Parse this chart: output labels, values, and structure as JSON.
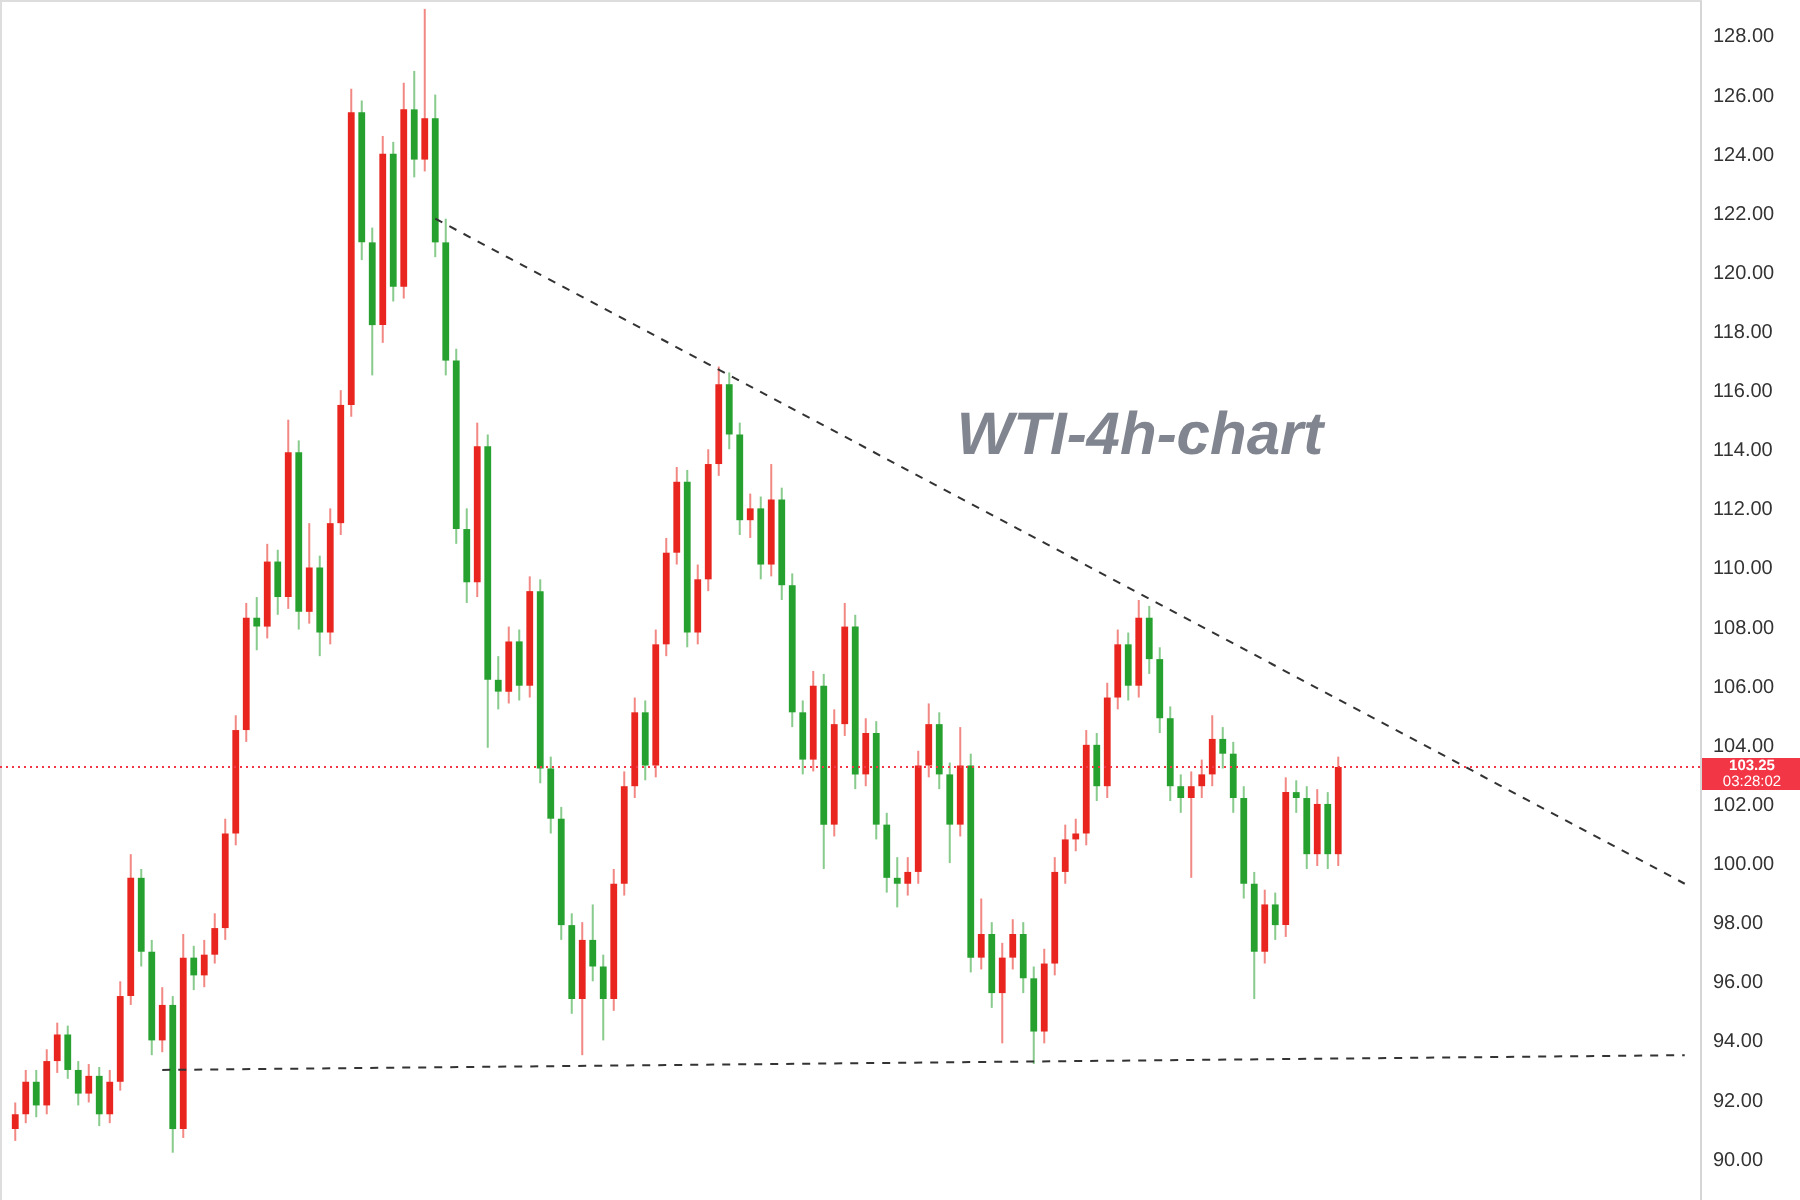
{
  "chart_data": {
    "type": "candlestick",
    "title": "WTI-4h-chart",
    "categories": [
      null,
      null,
      null,
      null,
      null,
      null,
      null,
      null,
      null,
      null,
      null,
      null,
      null,
      null,
      null,
      null,
      null,
      null,
      null,
      null,
      null,
      null,
      null,
      null,
      null,
      null,
      null,
      null,
      null,
      null,
      null,
      null,
      null,
      null,
      null,
      null,
      null,
      null,
      null,
      null,
      null,
      null,
      null,
      null,
      null,
      null,
      null,
      null,
      null,
      null,
      null,
      null,
      null,
      null,
      null,
      null,
      null,
      null,
      null,
      null,
      null,
      null,
      null,
      null,
      null,
      null,
      null,
      null,
      null,
      null,
      null,
      null,
      null,
      null,
      null,
      null,
      null,
      null,
      null,
      null,
      null,
      null,
      null,
      null,
      null,
      null,
      null,
      null,
      null,
      null,
      null,
      null,
      null,
      null,
      null,
      null,
      null,
      null,
      null,
      null,
      null,
      null,
      null,
      null,
      null,
      null,
      null,
      null,
      null,
      null,
      null,
      null,
      null,
      null,
      null,
      null,
      null,
      null,
      null,
      null,
      null,
      null,
      null,
      null,
      null,
      null,
      null,
      null,
      null,
      null,
      null,
      null,
      null,
      null,
      null,
      null,
      null,
      null,
      null,
      null,
      null,
      null,
      null,
      null,
      null,
      null,
      null,
      null,
      null,
      null,
      null,
      null,
      null,
      null,
      null,
      null,
      null,
      null,
      null,
      null
    ],
    "ohlc": [
      [
        91.0,
        91.9,
        90.6,
        91.5
      ],
      [
        91.5,
        93.0,
        91.2,
        92.6
      ],
      [
        92.6,
        93.0,
        91.4,
        91.8
      ],
      [
        91.8,
        93.7,
        91.5,
        93.3
      ],
      [
        93.3,
        94.6,
        92.9,
        94.2
      ],
      [
        94.2,
        94.5,
        92.7,
        93.0
      ],
      [
        93.0,
        93.3,
        91.8,
        92.2
      ],
      [
        92.2,
        93.2,
        91.9,
        92.8
      ],
      [
        92.8,
        93.1,
        91.1,
        91.5
      ],
      [
        91.5,
        93.0,
        91.2,
        92.6
      ],
      [
        92.6,
        96.0,
        92.3,
        95.5
      ],
      [
        95.5,
        100.3,
        95.2,
        99.5
      ],
      [
        99.5,
        99.8,
        96.5,
        97.0
      ],
      [
        97.0,
        97.4,
        93.5,
        94.0
      ],
      [
        94.0,
        95.8,
        93.6,
        95.2
      ],
      [
        95.2,
        95.5,
        90.2,
        91.0
      ],
      [
        91.0,
        97.6,
        90.7,
        96.8
      ],
      [
        96.8,
        97.2,
        95.7,
        96.2
      ],
      [
        96.2,
        97.4,
        95.8,
        96.9
      ],
      [
        96.9,
        98.3,
        96.6,
        97.8
      ],
      [
        97.8,
        101.5,
        97.4,
        101.0
      ],
      [
        101.0,
        105.0,
        100.6,
        104.5
      ],
      [
        104.5,
        108.8,
        104.1,
        108.3
      ],
      [
        108.3,
        109.0,
        107.2,
        108.0
      ],
      [
        108.0,
        110.8,
        107.6,
        110.2
      ],
      [
        110.2,
        110.6,
        108.4,
        109.0
      ],
      [
        109.0,
        115.0,
        108.6,
        113.9
      ],
      [
        113.9,
        114.3,
        107.9,
        108.5
      ],
      [
        108.5,
        111.5,
        108.1,
        110.0
      ],
      [
        110.0,
        110.4,
        107.0,
        107.8
      ],
      [
        107.8,
        112.0,
        107.4,
        111.5
      ],
      [
        111.5,
        116.0,
        111.1,
        115.5
      ],
      [
        115.5,
        126.2,
        115.1,
        125.4
      ],
      [
        125.4,
        125.8,
        120.4,
        121.0
      ],
      [
        121.0,
        121.5,
        116.5,
        118.2
      ],
      [
        118.2,
        124.6,
        117.6,
        124.0
      ],
      [
        124.0,
        124.4,
        119.0,
        119.5
      ],
      [
        119.5,
        126.4,
        119.1,
        125.5
      ],
      [
        125.5,
        126.8,
        123.2,
        123.8
      ],
      [
        123.8,
        128.9,
        123.4,
        125.2
      ],
      [
        125.2,
        126.0,
        120.5,
        121.0
      ],
      [
        121.0,
        121.8,
        116.5,
        117.0
      ],
      [
        117.0,
        117.4,
        110.8,
        111.3
      ],
      [
        111.3,
        112.0,
        108.8,
        109.5
      ],
      [
        109.5,
        114.9,
        109.0,
        114.1
      ],
      [
        114.1,
        114.5,
        103.9,
        106.2
      ],
      [
        106.2,
        107.0,
        105.2,
        105.8
      ],
      [
        105.8,
        108.0,
        105.4,
        107.5
      ],
      [
        107.5,
        107.9,
        105.5,
        106.0
      ],
      [
        106.0,
        109.7,
        105.6,
        109.2
      ],
      [
        109.2,
        109.6,
        102.7,
        103.2
      ],
      [
        103.2,
        103.6,
        101.0,
        101.5
      ],
      [
        101.5,
        101.9,
        97.4,
        97.9
      ],
      [
        97.9,
        98.3,
        94.9,
        95.4
      ],
      [
        95.4,
        98.0,
        93.5,
        97.4
      ],
      [
        97.4,
        98.6,
        96.0,
        96.5
      ],
      [
        96.5,
        96.9,
        94.0,
        95.4
      ],
      [
        95.4,
        99.8,
        95.0,
        99.3
      ],
      [
        99.3,
        103.1,
        98.9,
        102.6
      ],
      [
        102.6,
        105.6,
        102.2,
        105.1
      ],
      [
        105.1,
        105.5,
        102.8,
        103.3
      ],
      [
        103.3,
        107.9,
        102.9,
        107.4
      ],
      [
        107.4,
        111.0,
        107.0,
        110.5
      ],
      [
        110.5,
        113.4,
        110.1,
        112.9
      ],
      [
        112.9,
        113.3,
        107.3,
        107.8
      ],
      [
        107.8,
        110.1,
        107.4,
        109.6
      ],
      [
        109.6,
        114.0,
        109.2,
        113.5
      ],
      [
        113.5,
        116.8,
        113.1,
        116.2
      ],
      [
        116.2,
        116.6,
        114.0,
        114.5
      ],
      [
        114.5,
        114.9,
        111.1,
        111.6
      ],
      [
        111.6,
        112.5,
        111.0,
        112.0
      ],
      [
        112.0,
        112.4,
        109.6,
        110.1
      ],
      [
        110.1,
        113.5,
        109.7,
        112.3
      ],
      [
        112.3,
        112.7,
        108.9,
        109.4
      ],
      [
        109.4,
        109.8,
        104.6,
        105.1
      ],
      [
        105.1,
        105.5,
        103.0,
        103.5
      ],
      [
        103.5,
        106.5,
        103.1,
        106.0
      ],
      [
        106.0,
        106.4,
        99.8,
        101.3
      ],
      [
        101.3,
        105.2,
        100.9,
        104.7
      ],
      [
        104.7,
        108.8,
        104.3,
        108.0
      ],
      [
        108.0,
        108.4,
        102.5,
        103.0
      ],
      [
        103.0,
        104.9,
        102.6,
        104.4
      ],
      [
        104.4,
        104.8,
        100.8,
        101.3
      ],
      [
        101.3,
        101.7,
        99.0,
        99.5
      ],
      [
        99.5,
        100.2,
        98.5,
        99.3
      ],
      [
        99.3,
        100.2,
        98.9,
        99.7
      ],
      [
        99.7,
        103.8,
        99.3,
        103.3
      ],
      [
        103.3,
        105.4,
        102.9,
        104.7
      ],
      [
        104.7,
        105.1,
        102.5,
        103.0
      ],
      [
        103.0,
        103.4,
        100.0,
        101.3
      ],
      [
        101.3,
        104.6,
        100.9,
        103.3
      ],
      [
        103.3,
        103.7,
        96.3,
        96.8
      ],
      [
        96.8,
        98.8,
        96.4,
        97.6
      ],
      [
        97.6,
        98.0,
        95.1,
        95.6
      ],
      [
        95.6,
        97.3,
        93.9,
        96.8
      ],
      [
        96.8,
        98.1,
        96.4,
        97.6
      ],
      [
        97.6,
        98.0,
        95.6,
        96.1
      ],
      [
        96.1,
        96.5,
        93.2,
        94.3
      ],
      [
        94.3,
        97.1,
        93.9,
        96.6
      ],
      [
        96.6,
        100.2,
        96.2,
        99.7
      ],
      [
        99.7,
        101.3,
        99.3,
        100.8
      ],
      [
        100.8,
        101.5,
        100.4,
        101.0
      ],
      [
        101.0,
        104.5,
        100.6,
        104.0
      ],
      [
        104.0,
        104.4,
        102.1,
        102.6
      ],
      [
        102.6,
        106.1,
        102.2,
        105.6
      ],
      [
        105.6,
        107.9,
        105.2,
        107.4
      ],
      [
        107.4,
        107.8,
        105.5,
        106.0
      ],
      [
        106.0,
        108.9,
        105.6,
        108.3
      ],
      [
        108.3,
        108.7,
        106.4,
        106.9
      ],
      [
        106.9,
        107.3,
        104.4,
        104.9
      ],
      [
        104.9,
        105.3,
        102.1,
        102.6
      ],
      [
        102.6,
        103.0,
        101.7,
        102.2
      ],
      [
        102.2,
        103.1,
        99.5,
        102.6
      ],
      [
        102.6,
        103.5,
        102.2,
        103.0
      ],
      [
        103.0,
        105.0,
        102.6,
        104.2
      ],
      [
        104.2,
        104.6,
        103.2,
        103.7
      ],
      [
        103.7,
        104.1,
        101.7,
        102.2
      ],
      [
        102.2,
        102.6,
        98.8,
        99.3
      ],
      [
        99.3,
        99.7,
        95.4,
        97.0
      ],
      [
        97.0,
        99.1,
        96.6,
        98.6
      ],
      [
        98.6,
        99.0,
        97.4,
        97.9
      ],
      [
        97.9,
        102.9,
        97.5,
        102.4
      ],
      [
        102.4,
        102.8,
        101.7,
        102.2
      ],
      [
        102.2,
        102.6,
        99.8,
        100.3
      ],
      [
        100.3,
        102.5,
        99.9,
        102.0
      ],
      [
        102.0,
        102.4,
        99.8,
        100.3
      ],
      [
        100.3,
        103.6,
        99.9,
        103.25
      ],
      null,
      null,
      null,
      null,
      null,
      null,
      null,
      null,
      null,
      null,
      null,
      null,
      null,
      null,
      null,
      null,
      null,
      null,
      null,
      null,
      null,
      null,
      null,
      null,
      null,
      null,
      null,
      null,
      null,
      null,
      null,
      null,
      null
    ],
    "colors": [
      "#e8261f",
      "#e8261f",
      "#26a12f",
      "#e8261f",
      "#e8261f",
      "#26a12f",
      "#26a12f",
      "#e8261f",
      "#26a12f",
      "#e8261f",
      "#e8261f",
      "#e8261f",
      "#26a12f",
      "#26a12f",
      "#e8261f",
      "#26a12f",
      "#e8261f",
      "#26a12f",
      "#e8261f",
      "#e8261f",
      "#e8261f",
      "#e8261f",
      "#e8261f",
      "#26a12f",
      "#e8261f",
      "#26a12f",
      "#e8261f",
      "#26a12f",
      "#e8261f",
      "#26a12f",
      "#e8261f",
      "#e8261f",
      "#e8261f",
      "#26a12f",
      "#26a12f",
      "#e8261f",
      "#26a12f",
      "#e8261f",
      "#26a12f",
      "#e8261f",
      "#26a12f",
      "#26a12f",
      "#26a12f",
      "#26a12f",
      "#e8261f",
      "#26a12f",
      "#26a12f",
      "#e8261f",
      "#26a12f",
      "#e8261f",
      "#26a12f",
      "#26a12f",
      "#26a12f",
      "#26a12f",
      "#e8261f",
      "#26a12f",
      "#26a12f",
      "#e8261f",
      "#e8261f",
      "#e8261f",
      "#26a12f",
      "#e8261f",
      "#e8261f",
      "#e8261f",
      "#26a12f",
      "#e8261f",
      "#e8261f",
      "#e8261f",
      "#26a12f",
      "#26a12f",
      "#e8261f",
      "#26a12f",
      "#e8261f",
      "#26a12f",
      "#26a12f",
      "#26a12f",
      "#e8261f",
      "#26a12f",
      "#e8261f",
      "#e8261f",
      "#26a12f",
      "#e8261f",
      "#26a12f",
      "#26a12f",
      "#26a12f",
      "#e8261f",
      "#e8261f",
      "#e8261f",
      "#26a12f",
      "#26a12f",
      "#e8261f",
      "#26a12f",
      "#e8261f",
      "#26a12f",
      "#e8261f",
      "#e8261f",
      "#26a12f",
      "#26a12f",
      "#e8261f",
      "#e8261f",
      "#e8261f",
      "#e8261f",
      "#e8261f",
      "#26a12f",
      "#e8261f",
      "#e8261f",
      "#26a12f",
      "#e8261f",
      "#26a12f",
      "#26a12f",
      "#26a12f",
      "#26a12f",
      "#e8261f",
      "#e8261f",
      "#e8261f",
      "#26a12f",
      "#26a12f",
      "#26a12f",
      "#26a12f",
      "#e8261f",
      "#26a12f",
      "#e8261f",
      "#26a12f",
      "#26a12f",
      "#e8261f",
      "#26a12f",
      "#e8261f",
      null,
      null,
      null,
      null,
      null,
      null,
      null,
      null,
      null,
      null,
      null,
      null,
      null,
      null,
      null,
      null,
      null,
      null,
      null,
      null,
      null,
      null,
      null,
      null,
      null,
      null,
      null,
      null,
      null,
      null,
      null,
      null,
      null
    ],
    "series": [
      {
        "type": "line",
        "color": "#333333",
        "line_style": "dashed",
        "values": [
          null,
          null,
          null,
          null,
          null,
          null,
          null,
          null,
          null,
          null,
          null,
          null,
          null,
          null,
          null,
          null,
          null,
          null,
          null,
          null,
          null,
          null,
          null,
          null,
          null,
          null,
          null,
          null,
          null,
          null,
          null,
          null,
          null,
          null,
          null,
          null,
          null,
          null,
          null,
          null,
          121.8,
          null,
          null,
          null,
          null,
          null,
          null,
          null,
          null,
          null,
          null,
          null,
          null,
          null,
          null,
          null,
          null,
          null,
          null,
          null,
          null,
          null,
          null,
          null,
          null,
          null,
          null,
          null,
          null,
          null,
          null,
          null,
          null,
          null,
          null,
          null,
          null,
          null,
          null,
          null,
          null,
          null,
          null,
          null,
          null,
          null,
          null,
          null,
          null,
          null,
          null,
          null,
          null,
          null,
          null,
          null,
          null,
          null,
          null,
          null,
          null,
          null,
          null,
          null,
          null,
          null,
          null,
          null,
          null,
          null,
          null,
          null,
          null,
          null,
          null,
          null,
          null,
          null,
          null,
          null,
          null,
          null,
          null,
          null,
          null,
          null,
          null,
          null,
          null,
          null,
          null,
          null,
          null,
          null,
          null,
          null,
          null,
          null,
          null,
          null,
          null,
          null,
          null,
          null,
          null,
          null,
          null,
          null,
          null,
          null,
          null,
          null,
          null,
          null,
          null,
          null,
          null,
          null,
          null,
          99.3
        ]
      },
      {
        "type": "line",
        "color": "#333333",
        "line_style": "dashed",
        "values": [
          null,
          null,
          null,
          null,
          null,
          null,
          null,
          null,
          null,
          null,
          null,
          null,
          null,
          null,
          93.0,
          null,
          null,
          null,
          null,
          null,
          null,
          null,
          null,
          null,
          null,
          null,
          null,
          null,
          null,
          null,
          null,
          null,
          null,
          null,
          null,
          null,
          null,
          null,
          null,
          null,
          null,
          null,
          null,
          null,
          null,
          null,
          null,
          null,
          null,
          null,
          null,
          null,
          null,
          null,
          null,
          null,
          null,
          null,
          null,
          null,
          null,
          null,
          null,
          null,
          null,
          null,
          null,
          null,
          null,
          null,
          null,
          null,
          null,
          null,
          null,
          null,
          null,
          null,
          null,
          null,
          null,
          null,
          null,
          null,
          null,
          null,
          null,
          null,
          null,
          null,
          null,
          null,
          null,
          null,
          null,
          null,
          null,
          null,
          null,
          null,
          null,
          null,
          null,
          null,
          null,
          null,
          null,
          null,
          null,
          null,
          null,
          null,
          null,
          null,
          null,
          null,
          null,
          null,
          null,
          null,
          null,
          null,
          null,
          null,
          null,
          null,
          null,
          null,
          null,
          null,
          null,
          null,
          null,
          null,
          null,
          null,
          null,
          null,
          null,
          null,
          null,
          null,
          null,
          null,
          null,
          null,
          null,
          null,
          null,
          null,
          null,
          null,
          null,
          null,
          null,
          null,
          null,
          null,
          null,
          93.5
        ]
      }
    ],
    "ylim": [
      88.6,
      129.2
    ],
    "yticks": [
      {
        "value": 90,
        "label": "90.00"
      },
      {
        "value": 92,
        "label": "92.00"
      },
      {
        "value": 94,
        "label": "94.00"
      },
      {
        "value": 96,
        "label": "96.00"
      },
      {
        "value": 98,
        "label": "98.00"
      },
      {
        "value": 100,
        "label": "100.00"
      },
      {
        "value": 102,
        "label": "102.00"
      },
      {
        "value": 104,
        "label": "104.00"
      },
      {
        "value": 106,
        "label": "106.00"
      },
      {
        "value": 108,
        "label": "108.00"
      },
      {
        "value": 110,
        "label": "110.00"
      },
      {
        "value": 112,
        "label": "112.00"
      },
      {
        "value": 114,
        "label": "114.00"
      },
      {
        "value": 116,
        "label": "116.00"
      },
      {
        "value": 118,
        "label": "118.00"
      },
      {
        "value": 120,
        "label": "120.00"
      },
      {
        "value": 122,
        "label": "122.00"
      },
      {
        "value": 124,
        "label": "124.00"
      },
      {
        "value": 126,
        "label": "126.00"
      },
      {
        "value": 128,
        "label": "128.00"
      }
    ],
    "ref_lines": [
      {
        "axis": "y",
        "value": 103.25,
        "label": "103.25",
        "color": "#f23645",
        "line_style": "dotted"
      }
    ],
    "annotations": [
      "03:28:02"
    ],
    "tick_labels": "y"
  }
}
